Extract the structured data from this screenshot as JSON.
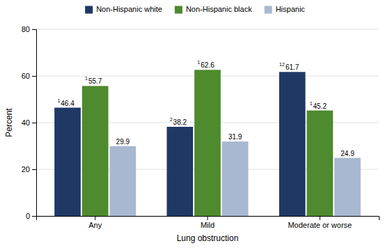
{
  "chart_data": {
    "type": "bar",
    "categories": [
      "Any",
      "Mild",
      "Moderate or worse"
    ],
    "series": [
      {
        "name": "Non-Hispanic white",
        "color": "#1f3864",
        "values": [
          46.4,
          38.2,
          61.7
        ],
        "superscripts": [
          "1",
          "2",
          "12"
        ]
      },
      {
        "name": "Non-Hispanic black",
        "color": "#4e8a2e",
        "values": [
          55.7,
          62.6,
          45.2
        ],
        "superscripts": [
          "1",
          "1",
          "1"
        ]
      },
      {
        "name": "Hispanic",
        "color": "#a8b8d0",
        "values": [
          29.9,
          31.9,
          24.9
        ]
      }
    ],
    "xlabel": "Lung obstruction",
    "ylabel": "Percent",
    "ylim": [
      0,
      80
    ],
    "yticks": [
      0,
      20,
      40,
      60,
      80
    ],
    "grid": true,
    "legend": "top",
    "data_labels": true
  }
}
